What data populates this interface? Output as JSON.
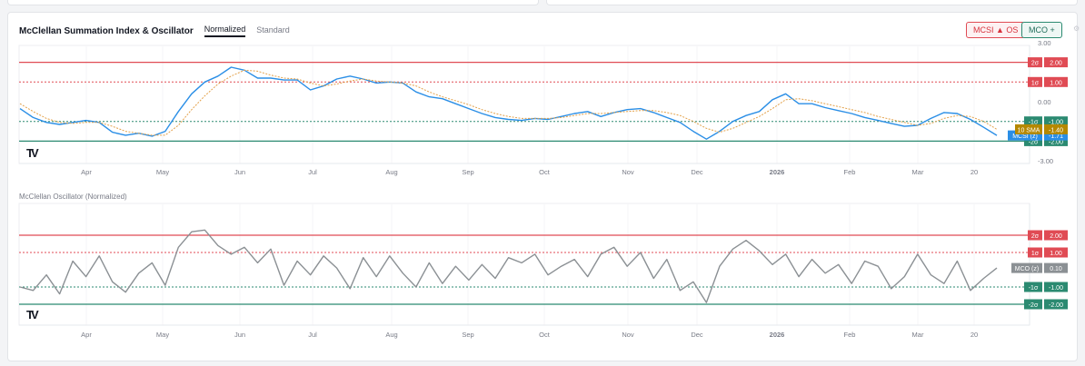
{
  "header": {
    "title": "McClellan Summation Index & Oscillator",
    "tabs": [
      {
        "label": "Normalized",
        "active": true
      },
      {
        "label": "Standard",
        "active": false
      }
    ],
    "buttons": {
      "mcsi": "MCSI ▲ OS",
      "mco": "MCO +"
    }
  },
  "logo": "TV",
  "colors": {
    "red": "#e04b54",
    "green": "#2b8a71",
    "blue": "#2a8ee6",
    "orange": "#e3a14a",
    "gray": "#8b9094",
    "sma_badge": "#b58800"
  },
  "chart_data": [
    {
      "type": "line",
      "title": "McClellan Summation Index & Oscillator",
      "ylim": [
        -3,
        3
      ],
      "y_ticks": [
        "3.00",
        "0.00",
        "-3.00"
      ],
      "x_labels": [
        "Apr",
        "May",
        "Jun",
        "Jul",
        "Aug",
        "Sep",
        "Oct",
        "Nov",
        "Dec",
        "2026",
        "Feb",
        "Mar",
        "20"
      ],
      "reference_lines": [
        {
          "label": "2σ",
          "value": 2.0,
          "value_label": "2.00",
          "color": "#e04b54",
          "style": "solid"
        },
        {
          "label": "1σ",
          "value": 1.0,
          "value_label": "1.00",
          "color": "#e04b54",
          "style": "dashed"
        },
        {
          "label": "-1σ",
          "value": -1.0,
          "value_label": "-1.00",
          "color": "#2b8a71",
          "style": "dashed"
        },
        {
          "label": "-2σ",
          "value": -2.0,
          "value_label": "-2.00",
          "color": "#2b8a71",
          "style": "solid"
        }
      ],
      "series": [
        {
          "name": "MCSI (z)",
          "last_label": "-1.71",
          "color": "#2a8ee6",
          "values": [
            -0.35,
            -0.8,
            -1.05,
            -1.15,
            -1.05,
            -0.95,
            -1.05,
            -1.55,
            -1.7,
            -1.6,
            -1.75,
            -1.5,
            -0.5,
            0.4,
            1.0,
            1.3,
            1.75,
            1.6,
            1.2,
            1.2,
            1.1,
            1.1,
            0.6,
            0.8,
            1.15,
            1.3,
            1.15,
            0.95,
            1.0,
            0.95,
            0.5,
            0.25,
            0.15,
            -0.1,
            -0.35,
            -0.6,
            -0.8,
            -0.9,
            -0.95,
            -0.85,
            -0.9,
            -0.75,
            -0.6,
            -0.5,
            -0.75,
            -0.55,
            -0.4,
            -0.35,
            -0.55,
            -0.8,
            -1.05,
            -1.5,
            -1.9,
            -1.5,
            -1.0,
            -0.7,
            -0.5,
            0.1,
            0.4,
            -0.1,
            -0.1,
            -0.3,
            -0.45,
            -0.6,
            -0.8,
            -0.95,
            -1.1,
            -1.25,
            -1.2,
            -0.85,
            -0.55,
            -0.6,
            -0.9,
            -1.3,
            -1.71
          ]
        },
        {
          "name": "10 SMA",
          "last_label": "-1.40",
          "color": "#e3a14a",
          "values": [
            -0.1,
            -0.5,
            -0.85,
            -1.05,
            -1.1,
            -1.05,
            -1.05,
            -1.25,
            -1.5,
            -1.6,
            -1.7,
            -1.7,
            -1.2,
            -0.4,
            0.3,
            0.9,
            1.3,
            1.6,
            1.55,
            1.35,
            1.2,
            1.15,
            0.95,
            0.8,
            0.9,
            1.05,
            1.15,
            1.05,
            1.0,
            0.95,
            0.8,
            0.5,
            0.25,
            0.05,
            -0.15,
            -0.4,
            -0.6,
            -0.75,
            -0.85,
            -0.85,
            -0.85,
            -0.8,
            -0.7,
            -0.6,
            -0.6,
            -0.55,
            -0.5,
            -0.45,
            -0.45,
            -0.55,
            -0.7,
            -1.0,
            -1.35,
            -1.55,
            -1.35,
            -1.05,
            -0.75,
            -0.35,
            0.1,
            0.15,
            0.05,
            -0.1,
            -0.25,
            -0.4,
            -0.55,
            -0.75,
            -0.9,
            -1.05,
            -1.2,
            -1.1,
            -0.85,
            -0.7,
            -0.75,
            -1.0,
            -1.4
          ]
        }
      ]
    },
    {
      "type": "line",
      "title": "McClellan Oscillator (Normalized)",
      "ylim": [
        -2.5,
        2.8
      ],
      "x_labels": [
        "Apr",
        "May",
        "Jun",
        "Jul",
        "Aug",
        "Sep",
        "Oct",
        "Nov",
        "Dec",
        "2026",
        "Feb",
        "Mar",
        "20"
      ],
      "reference_lines": [
        {
          "label": "2σ",
          "value": 2.0,
          "value_label": "2.00",
          "color": "#e04b54",
          "style": "solid"
        },
        {
          "label": "1σ",
          "value": 1.0,
          "value_label": "1.00",
          "color": "#e04b54",
          "style": "dashed"
        },
        {
          "label": "-1σ",
          "value": -1.0,
          "value_label": "-1.00",
          "color": "#2b8a71",
          "style": "dashed"
        },
        {
          "label": "-2σ",
          "value": -2.0,
          "value_label": "-2.00",
          "color": "#2b8a71",
          "style": "solid"
        }
      ],
      "series": [
        {
          "name": "MCO (z)",
          "last_label": "0.10",
          "color": "#8b9094",
          "values": [
            -1.0,
            -1.2,
            -0.3,
            -1.4,
            0.5,
            -0.4,
            0.8,
            -0.7,
            -1.3,
            -0.2,
            0.4,
            -0.9,
            1.3,
            2.2,
            2.3,
            1.4,
            0.9,
            1.3,
            0.4,
            1.2,
            -0.9,
            0.5,
            -0.3,
            0.8,
            0.1,
            -1.1,
            0.7,
            -0.4,
            0.8,
            -0.2,
            -1.0,
            0.4,
            -0.8,
            0.2,
            -0.6,
            0.3,
            -0.5,
            0.7,
            0.4,
            0.9,
            -0.3,
            0.2,
            0.6,
            -0.4,
            0.9,
            1.3,
            0.2,
            1.0,
            -0.5,
            0.6,
            -1.2,
            -0.7,
            -1.9,
            0.2,
            1.2,
            1.7,
            1.1,
            0.3,
            0.9,
            -0.4,
            0.6,
            -0.2,
            0.3,
            -0.8,
            0.5,
            0.2,
            -1.1,
            -0.4,
            0.9,
            -0.3,
            -0.8,
            0.5,
            -1.2,
            -0.5,
            0.1
          ]
        }
      ]
    }
  ]
}
